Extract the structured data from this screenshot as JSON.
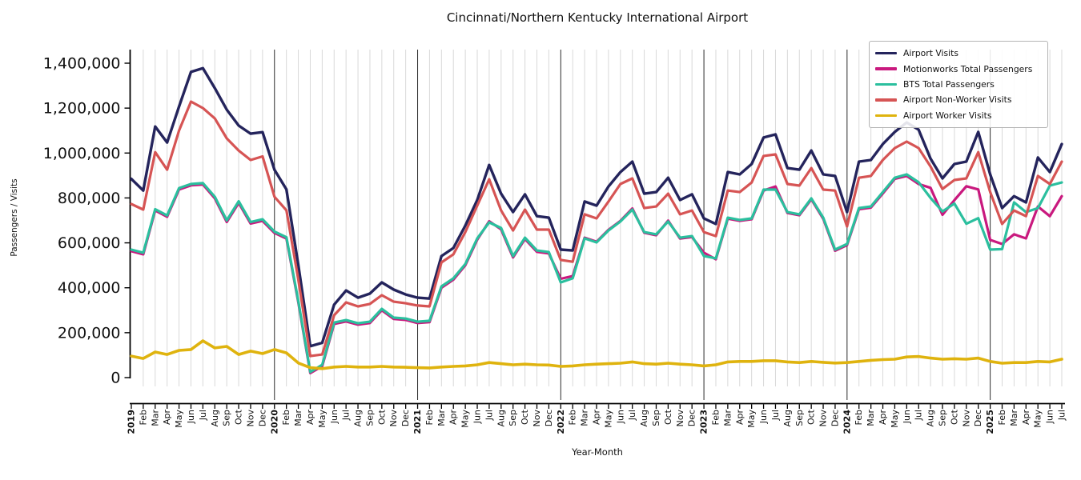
{
  "title": "Cincinnati/Northern Kentucky International Airport",
  "xlabel": "Year-Month",
  "ylabel": "Passengers / Visits",
  "colors": {
    "grid_minor": "#d9d9d9",
    "grid_january": "#2b2b2b",
    "axis": "#000000",
    "text": "#111111",
    "legend_border": "#b3b3b3"
  },
  "chart_data": {
    "type": "line",
    "title": "Cincinnati/Northern Kentucky International Airport",
    "xlabel": "Year-Month",
    "ylabel": "Passengers / Visits",
    "legend_position": "upper right",
    "grid": "vertical gridline per month; dark vertical line at each January",
    "ylim": [
      -115000,
      1465000
    ],
    "ytick_values": [
      0,
      200000,
      400000,
      600000,
      800000,
      1000000,
      1200000,
      1400000
    ],
    "ytick_labels": [
      "0",
      "200,000",
      "400,000",
      "600,000",
      "800,000",
      "1,000,000",
      "1,200,000",
      "1,400,000"
    ],
    "x_months": [
      "2019",
      "Feb",
      "Mar",
      "Apr",
      "May",
      "Jun",
      "Jul",
      "Aug",
      "Sep",
      "Oct",
      "Nov",
      "Dec",
      "2020",
      "Feb",
      "Mar",
      "Apr",
      "May",
      "Jun",
      "Jul",
      "Aug",
      "Sep",
      "Oct",
      "Nov",
      "Dec",
      "2021",
      "Feb",
      "Mar",
      "Apr",
      "May",
      "Jun",
      "Jul",
      "Aug",
      "Sep",
      "Oct",
      "Nov",
      "Dec",
      "2022",
      "Feb",
      "Mar",
      "Apr",
      "May",
      "Jun",
      "Jul",
      "Aug",
      "Sep",
      "Oct",
      "Nov",
      "Dec",
      "2023",
      "Feb",
      "Mar",
      "Apr",
      "May",
      "Jun",
      "Jul",
      "Aug",
      "Sep",
      "Oct",
      "Nov",
      "Dec",
      "2024",
      "Feb",
      "Mar",
      "Apr",
      "May",
      "Jun",
      "Jul",
      "Aug",
      "Sep",
      "Oct",
      "Nov",
      "Dec",
      "2025",
      "Feb",
      "Mar",
      "Apr",
      "May",
      "Jun",
      "Jul"
    ],
    "series": [
      {
        "name": "Airport Visits",
        "color": "#24245c",
        "linewidth": 3.4,
        "values": [
          885000,
          833000,
          1118000,
          1047000,
          1207000,
          1361000,
          1378000,
          1289000,
          1193000,
          1122000,
          1086000,
          1093000,
          925000,
          838000,
          500000,
          140000,
          155000,
          325000,
          388000,
          356000,
          374000,
          424000,
          392000,
          370000,
          356000,
          352000,
          541000,
          577000,
          677000,
          791000,
          947000,
          819000,
          737000,
          816000,
          719000,
          712000,
          570000,
          566000,
          784000,
          766000,
          851000,
          915000,
          962000,
          819000,
          826000,
          890000,
          791000,
          816000,
          709000,
          684000,
          915000,
          905000,
          951000,
          1069000,
          1083000,
          933000,
          926000,
          1011000,
          905000,
          898000,
          737000,
          962000,
          969000,
          1040000,
          1094000,
          1136000,
          1104000,
          975000,
          887000,
          951000,
          962000,
          1094000,
          905000,
          755000,
          808000,
          780000,
          980000,
          915000,
          1040000
        ]
      },
      {
        "name": "Motionworks Total Passengers",
        "color": "#c9197e",
        "linewidth": 3.2,
        "values": [
          563000,
          549000,
          744000,
          716000,
          838000,
          856000,
          860000,
          798000,
          693000,
          778000,
          686000,
          698000,
          644000,
          619000,
          334000,
          20000,
          51000,
          239000,
          250000,
          236000,
          243000,
          300000,
          261000,
          257000,
          243000,
          247000,
          400000,
          436000,
          500000,
          614000,
          696000,
          660000,
          535000,
          617000,
          560000,
          553000,
          440000,
          452000,
          623000,
          605000,
          658000,
          698000,
          753000,
          645000,
          634000,
          699000,
          619000,
          626000,
          556000,
          527000,
          708000,
          698000,
          705000,
          833000,
          851000,
          733000,
          723000,
          794000,
          707000,
          565000,
          590000,
          750000,
          757000,
          820000,
          885000,
          898000,
          862000,
          845000,
          725000,
          790000,
          852000,
          838000,
          613000,
          595000,
          638000,
          620000,
          762000,
          719000,
          808000
        ]
      },
      {
        "name": "BTS Total Passengers",
        "color": "#2bbf9e",
        "linewidth": 3.2,
        "values": [
          570000,
          556000,
          750000,
          722000,
          844000,
          862000,
          866000,
          805000,
          700000,
          785000,
          693000,
          705000,
          650000,
          625000,
          340000,
          25000,
          57000,
          245000,
          256000,
          242000,
          249000,
          306000,
          267000,
          263000,
          249000,
          253000,
          406000,
          442000,
          506000,
          620000,
          691000,
          666000,
          541000,
          623000,
          566000,
          559000,
          424000,
          442000,
          620000,
          602000,
          655000,
          695000,
          748000,
          648000,
          638000,
          695000,
          623000,
          630000,
          541000,
          531000,
          712000,
          702000,
          709000,
          837000,
          837000,
          737000,
          727000,
          798000,
          712000,
          570000,
          595000,
          755000,
          762000,
          826000,
          890000,
          905000,
          870000,
          800000,
          740000,
          775000,
          685000,
          710000,
          570000,
          572000,
          780000,
          737000,
          755000,
          855000,
          869000
        ]
      },
      {
        "name": "Airport Non-Worker Visits",
        "color": "#d65454",
        "linewidth": 3.2,
        "values": [
          773000,
          748000,
          1004000,
          926000,
          1100000,
          1229000,
          1200000,
          1154000,
          1065000,
          1011000,
          969000,
          985000,
          805000,
          745000,
          435000,
          96000,
          103000,
          278000,
          335000,
          317000,
          328000,
          367000,
          338000,
          331000,
          321000,
          317000,
          513000,
          549000,
          648000,
          766000,
          883000,
          744000,
          655000,
          748000,
          659000,
          659000,
          524000,
          516000,
          727000,
          709000,
          784000,
          862000,
          887000,
          755000,
          762000,
          819000,
          727000,
          744000,
          648000,
          630000,
          833000,
          826000,
          869000,
          987000,
          994000,
          862000,
          855000,
          933000,
          837000,
          833000,
          673000,
          890000,
          898000,
          969000,
          1022000,
          1051000,
          1022000,
          940000,
          840000,
          880000,
          887000,
          1004000,
          826000,
          684000,
          744000,
          719000,
          898000,
          862000,
          962000
        ]
      },
      {
        "name": "Airport Worker Visits",
        "color": "#dfb30e",
        "linewidth": 3.6,
        "values": [
          96000,
          85000,
          114000,
          103000,
          121000,
          125000,
          164000,
          132000,
          139000,
          103000,
          118000,
          107000,
          125000,
          110000,
          65000,
          44000,
          40000,
          47000,
          50000,
          47000,
          47000,
          50000,
          47000,
          46000,
          44000,
          43000,
          47000,
          50000,
          52000,
          57000,
          67000,
          62000,
          57000,
          60000,
          57000,
          56000,
          50000,
          52000,
          57000,
          60000,
          62000,
          64000,
          70000,
          62000,
          60000,
          64000,
          60000,
          57000,
          52000,
          57000,
          70000,
          72000,
          72000,
          75000,
          75000,
          70000,
          67000,
          72000,
          68000,
          65000,
          67000,
          72000,
          77000,
          80000,
          82000,
          92000,
          94000,
          87000,
          82000,
          84000,
          82000,
          87000,
          72000,
          64000,
          67000,
          67000,
          72000,
          70000,
          82000
        ]
      }
    ]
  }
}
